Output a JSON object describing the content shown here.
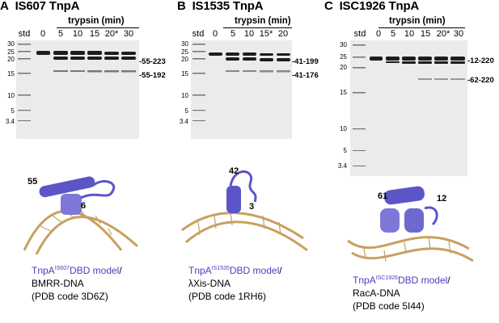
{
  "panels": [
    {
      "letter": "A",
      "title": "IS607 TnpA",
      "treatment": "trypsin (min)",
      "std_label": "std",
      "lanes": [
        "0",
        "5",
        "10",
        "15",
        "20*",
        "30"
      ],
      "markers": [
        "30",
        "25",
        "20",
        "15",
        "10",
        "5",
        "3.4"
      ],
      "fragments": [
        "55-223",
        "55-192"
      ],
      "structure_labels": [
        "55",
        "6"
      ],
      "caption": {
        "protein": "TnpA",
        "element": "IS607",
        "model": "DBD model",
        "dna": "BMRR-DNA",
        "pdb": "(PDB code 3D6Z)"
      }
    },
    {
      "letter": "B",
      "title": "IS1535 TnpA",
      "treatment": "trypsin (min)",
      "std_label": "std",
      "lanes": [
        "0",
        "5",
        "10",
        "15*",
        "20"
      ],
      "markers": [
        "30",
        "25",
        "20",
        "15",
        "10",
        "5",
        "3.4"
      ],
      "fragments": [
        "41-199",
        "41-176"
      ],
      "structure_labels": [
        "42",
        "3"
      ],
      "caption": {
        "protein": "TnpA",
        "element": "IS1535",
        "model": "DBD model",
        "dna": "λXis-DNA",
        "pdb": "(PDB code 1RH6)"
      }
    },
    {
      "letter": "C",
      "title": "ISC1926 TnpA",
      "treatment": "trypsin (min)",
      "std_label": "std",
      "lanes": [
        "0",
        "5",
        "10",
        "15",
        "20*",
        "30"
      ],
      "markers": [
        "30",
        "25",
        "20",
        "15",
        "10",
        "5",
        "3.4"
      ],
      "fragments": [
        "12-220",
        "62-220"
      ],
      "structure_labels": [
        "61",
        "12"
      ],
      "caption": {
        "protein": "TnpA",
        "element": "ISC1926",
        "model": "DBD model",
        "dna": "RacA-DNA",
        "pdb": "(PDB code 5I44)"
      }
    }
  ],
  "colors": {
    "blue_text": "#4a3fc2",
    "helix_blue": "#5b55c8",
    "dna_tan": "#c8a060",
    "gel_bg": "#ebebeb",
    "band": "#222222"
  }
}
